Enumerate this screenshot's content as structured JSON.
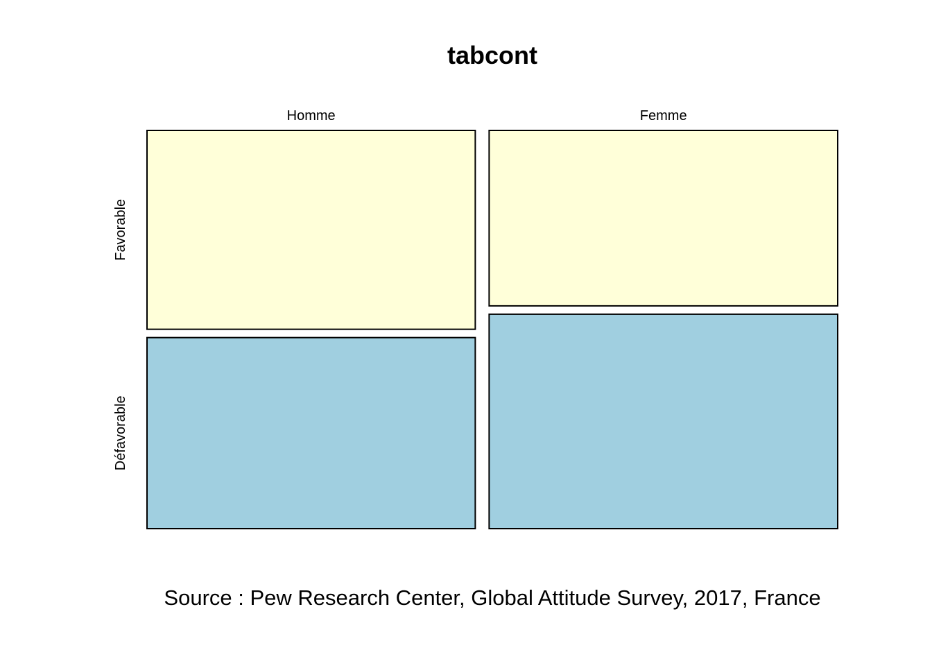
{
  "chart_data": {
    "type": "mosaic",
    "title": "tabcont",
    "caption": "Source : Pew Research Center, Global Attitude Survey, 2017, France",
    "columns": [
      "Homme",
      "Femme"
    ],
    "rows": [
      "Favorable",
      "Défavorable"
    ],
    "column_proportions": [
      0.485,
      0.515
    ],
    "conditional_proportions": [
      {
        "column": "Homme",
        "values": [
          0.51,
          0.49
        ]
      },
      {
        "column": "Femme",
        "values": [
          0.45,
          0.55
        ]
      }
    ],
    "colors": {
      "Favorable": "#ffffd9",
      "Défavorable": "#a0cfe0"
    },
    "axes": false,
    "grid": false,
    "legend": "none"
  }
}
